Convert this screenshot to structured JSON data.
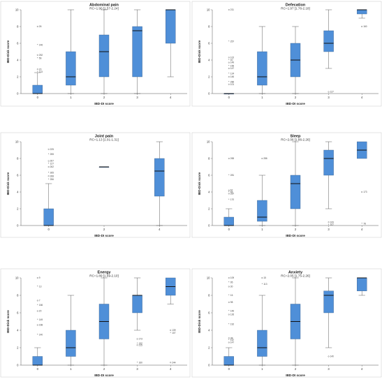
{
  "chart_data": [
    {
      "type": "box",
      "title": "Abdominal pain",
      "subtitle": "RC=1.90 [1.57-2.24]",
      "xlabel": "IBD-DI score",
      "ylabel": "IBD-Disk score",
      "ylim": [
        0,
        10
      ],
      "yticks": [
        0,
        2,
        4,
        6,
        8,
        10
      ],
      "boxes": [
        {
          "category": "0",
          "min": 0,
          "q1": 0,
          "median": 0,
          "q3": 1,
          "max": 2.5,
          "outliers": [
            {
              "y": 8.0,
              "label": "26"
            },
            {
              "y": 5.8,
              "label": "146"
            },
            {
              "y": 4.6,
              "label": "252"
            },
            {
              "y": 4.2,
              "label": "56"
            },
            {
              "y": 2.9,
              "label": "20"
            },
            {
              "y": 2.6,
              "label": "113"
            }
          ]
        },
        {
          "category": "1",
          "min": 0,
          "q1": 1,
          "median": 2,
          "q3": 5,
          "max": 10,
          "outliers": []
        },
        {
          "category": "2",
          "min": 0,
          "q1": 2,
          "median": 5,
          "q3": 7,
          "max": 10,
          "outliers": []
        },
        {
          "category": "3",
          "min": 0,
          "q1": 2,
          "median": 7.5,
          "q3": 8,
          "max": 10,
          "outliers": []
        },
        {
          "category": "4",
          "min": 2,
          "q1": 6,
          "median": 10,
          "q3": 10,
          "max": 10,
          "outliers": []
        }
      ]
    },
    {
      "type": "box",
      "title": "Defecation",
      "subtitle": "RC=1.97 [1.76-2.18]",
      "xlabel": "IBD-DI score",
      "ylabel": "IBD-Disk score",
      "ylim": [
        0,
        10
      ],
      "yticks": [
        0,
        2,
        4,
        6,
        8,
        10
      ],
      "boxes": [
        {
          "category": "0",
          "min": 0,
          "q1": 0,
          "median": 0,
          "q3": 0,
          "max": 0,
          "outliers": [
            {
              "y": 10.0,
              "label": "211"
            },
            {
              "y": 6.2,
              "label": "257"
            },
            {
              "y": 4.3,
              "label": "102"
            },
            {
              "y": 4.0,
              "label": "40"
            },
            {
              "y": 3.7,
              "label": "149"
            },
            {
              "y": 3.3,
              "label": "156"
            },
            {
              "y": 3.0,
              "label": "147"
            },
            {
              "y": 2.4,
              "label": "124"
            },
            {
              "y": 2.0,
              "label": "146"
            },
            {
              "y": 1.4,
              "label": "286"
            },
            {
              "y": 1.1,
              "label": "101"
            }
          ]
        },
        {
          "category": "1",
          "min": 0,
          "q1": 1,
          "median": 2,
          "q3": 5,
          "max": 8,
          "outliers": []
        },
        {
          "category": "2",
          "min": 0,
          "q1": 2,
          "median": 4,
          "q3": 6,
          "max": 8,
          "outliers": []
        },
        {
          "category": "3",
          "min": 3,
          "q1": 5,
          "median": 6,
          "q3": 7.5,
          "max": 10,
          "outliers": [
            {
              "y": 0.2,
              "label": "127"
            }
          ]
        },
        {
          "category": "4",
          "min": 9,
          "q1": 9.5,
          "median": 10,
          "q3": 10,
          "max": 10,
          "outliers": [
            {
              "y": 8.0,
              "label": "160"
            }
          ]
        }
      ]
    },
    {
      "type": "box",
      "title": "Joint pain",
      "subtitle": "RC=1.13 [1.01-1.31]",
      "xlabel": "IBD-DI score",
      "ylabel": "IBD-Disk score",
      "ylim": [
        0,
        10
      ],
      "yticks": [
        0,
        2,
        4,
        6,
        8,
        10
      ],
      "boxes": [
        {
          "category": "0",
          "min": 0,
          "q1": 0,
          "median": 0,
          "q3": 2,
          "max": 5,
          "outliers": [
            {
              "y": 9.1,
              "label": "225"
            },
            {
              "y": 8.5,
              "label": "255"
            },
            {
              "y": 7.7,
              "label": "267"
            },
            {
              "y": 7.4,
              "label": "127"
            },
            {
              "y": 7.0,
              "label": "262"
            },
            {
              "y": 6.3,
              "label": "265"
            },
            {
              "y": 5.9,
              "label": "268"
            },
            {
              "y": 5.5,
              "label": "256"
            }
          ]
        },
        {
          "category": "2",
          "min": 7,
          "q1": 7,
          "median": 7,
          "q3": 7,
          "max": 7,
          "outliers": []
        },
        {
          "category": "4",
          "min": 0,
          "q1": 3.5,
          "median": 6.5,
          "q3": 8,
          "max": 10,
          "outliers": []
        }
      ]
    },
    {
      "type": "box",
      "title": "Sleep",
      "subtitle": "RC=2.06 [1.86-2.26]",
      "xlabel": "IBD-DI score",
      "ylabel": "IBD-Disk score",
      "ylim": [
        0,
        10
      ],
      "yticks": [
        0,
        2,
        4,
        6,
        8,
        10
      ],
      "boxes": [
        {
          "category": "0",
          "min": 0,
          "q1": 0,
          "median": 0,
          "q3": 1,
          "max": 2,
          "outliers": [
            {
              "y": 8.0,
              "label": "265"
            },
            {
              "y": 6.0,
              "label": "281"
            },
            {
              "y": 4.2,
              "label": "67"
            },
            {
              "y": 4.0,
              "label": "45"
            },
            {
              "y": 3.8,
              "label": "287"
            },
            {
              "y": 3.1,
              "label": "170"
            }
          ]
        },
        {
          "category": "1",
          "min": 0,
          "q1": 0.5,
          "median": 1,
          "q3": 3,
          "max": 6,
          "outliers": [
            {
              "y": 8.0,
              "label": "286"
            }
          ]
        },
        {
          "category": "2",
          "min": 0,
          "q1": 2,
          "median": 5,
          "q3": 6,
          "max": 10,
          "outliers": []
        },
        {
          "category": "3",
          "min": 2,
          "q1": 6,
          "median": 8,
          "q3": 9,
          "max": 10,
          "outliers": [
            {
              "y": 0.4,
              "label": "109"
            },
            {
              "y": 0.1,
              "label": "107"
            }
          ]
        },
        {
          "category": "4",
          "min": 8,
          "q1": 8,
          "median": 9,
          "q3": 10,
          "max": 10,
          "outliers": [
            {
              "y": 4.0,
              "label": "173"
            },
            {
              "y": 0.2,
              "label": "78"
            }
          ]
        }
      ]
    },
    {
      "type": "box",
      "title": "Energy",
      "subtitle": "RC=1.89 [1.69-2.10]",
      "xlabel": "IBD-DI score",
      "ylabel": "IBD-Disk score",
      "ylim": [
        0,
        10
      ],
      "yticks": [
        0,
        2,
        4,
        6,
        8,
        10
      ],
      "boxes": [
        {
          "category": "0",
          "min": 0,
          "q1": 0,
          "median": 0,
          "q3": 1,
          "max": 2,
          "outliers": [
            {
              "y": 10.0,
              "label": "9"
            },
            {
              "y": 9.0,
              "label": "13"
            },
            {
              "y": 7.4,
              "label": "7"
            },
            {
              "y": 6.9,
              "label": "166"
            },
            {
              "y": 6.2,
              "label": "20"
            },
            {
              "y": 5.2,
              "label": "149"
            },
            {
              "y": 4.6,
              "label": "168"
            },
            {
              "y": 3.5,
              "label": "140"
            }
          ]
        },
        {
          "category": "1",
          "min": 0,
          "q1": 1,
          "median": 2,
          "q3": 4,
          "max": 8,
          "outliers": []
        },
        {
          "category": "2",
          "min": 0,
          "q1": 3,
          "median": 5,
          "q3": 7,
          "max": 10,
          "outliers": []
        },
        {
          "category": "3",
          "min": 4,
          "q1": 6,
          "median": 8,
          "q3": 8,
          "max": 10,
          "outliers": [
            {
              "y": 3.0,
              "label": "173"
            },
            {
              "y": 2.5,
              "label": "132"
            },
            {
              "y": 2.3,
              "label": "215"
            },
            {
              "y": 0.3,
              "label": "160"
            }
          ]
        },
        {
          "category": "4",
          "min": 7,
          "q1": 8,
          "median": 9,
          "q3": 10,
          "max": 10,
          "outliers": [
            {
              "y": 4.0,
              "label": "139"
            },
            {
              "y": 3.7,
              "label": "107"
            },
            {
              "y": 0.3,
              "label": "244"
            }
          ]
        }
      ]
    },
    {
      "type": "box",
      "title": "Anxiety",
      "subtitle": "RC=2.05 [1.75-2.26]",
      "xlabel": "IBD-DI score",
      "ylabel": "IBD-Disk score",
      "ylim": [
        0,
        10
      ],
      "yticks": [
        0,
        2,
        4,
        6,
        8,
        10
      ],
      "boxes": [
        {
          "category": "0",
          "min": 0,
          "q1": 0,
          "median": 0,
          "q3": 1,
          "max": 2,
          "outliers": [
            {
              "y": 10.0,
              "label": "109"
            },
            {
              "y": 9.5,
              "label": "95"
            },
            {
              "y": 9.0,
              "label": "30"
            },
            {
              "y": 8.0,
              "label": "16"
            },
            {
              "y": 7.2,
              "label": "98"
            },
            {
              "y": 6.2,
              "label": "146"
            },
            {
              "y": 5.8,
              "label": "126"
            },
            {
              "y": 4.7,
              "label": "192"
            },
            {
              "y": 3.1,
              "label": "38"
            },
            {
              "y": 2.9,
              "label": "112"
            },
            {
              "y": 2.6,
              "label": "147"
            }
          ]
        },
        {
          "category": "1",
          "min": 0,
          "q1": 1,
          "median": 2,
          "q3": 4,
          "max": 8,
          "outliers": [
            {
              "y": 10.0,
              "label": "15"
            },
            {
              "y": 9.3,
              "label": "113"
            }
          ]
        },
        {
          "category": "2",
          "min": 0,
          "q1": 3,
          "median": 5,
          "q3": 7,
          "max": 10,
          "outliers": []
        },
        {
          "category": "3",
          "min": 2,
          "q1": 6,
          "median": 8,
          "q3": 8.5,
          "max": 10,
          "outliers": [
            {
              "y": 1.0,
              "label": "140"
            }
          ]
        },
        {
          "category": "4",
          "min": 8,
          "q1": 8.5,
          "median": 10,
          "q3": 10,
          "max": 10,
          "outliers": []
        }
      ]
    }
  ]
}
